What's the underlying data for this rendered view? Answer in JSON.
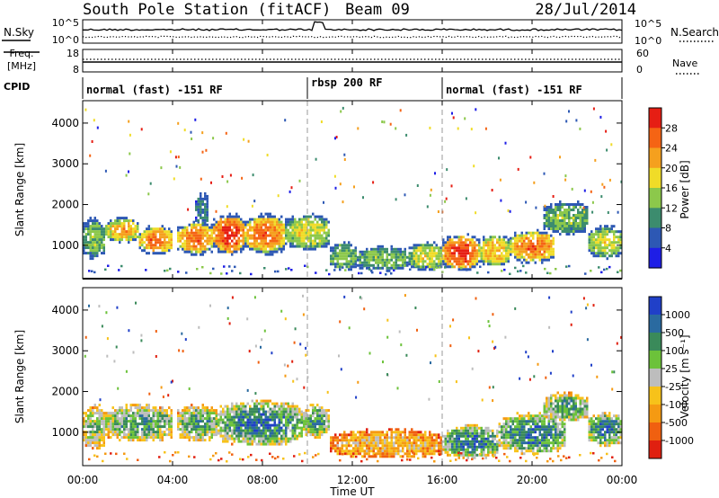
{
  "header": {
    "station": "South Pole Station (fitACF)",
    "beam": "Beam 09",
    "date": "28/Jul/2014"
  },
  "top_panels": {
    "nsky_label": "N.Sky",
    "nsky_ticks": [
      "10^5",
      "10^0"
    ],
    "nsearch_label": "N.Search",
    "nsearch_ticks": [
      "10^5",
      "10^0"
    ],
    "freq_label_1": "Freq.",
    "freq_label_2": "[MHz]",
    "freq_ticks": [
      "18",
      "8"
    ],
    "nave_label": "Nave",
    "nave_ticks": [
      "60",
      "0"
    ],
    "cpid_label": "CPID"
  },
  "cpid_segments": [
    {
      "label": "normal (fast) -151 RF",
      "start_hour": 0,
      "end_hour": 10
    },
    {
      "label": "rbsp 200 RF",
      "start_hour": 10,
      "end_hour": 16
    },
    {
      "label": "normal (fast) -151 RF",
      "start_hour": 16,
      "end_hour": 24
    }
  ],
  "x_axis": {
    "label": "Time UT",
    "ticks": [
      "00:00",
      "04:00",
      "08:00",
      "12:00",
      "16:00",
      "20:00",
      "00:00"
    ],
    "range_hours": [
      0,
      24
    ]
  },
  "y_axis": {
    "label": "Slant Range [km]",
    "ticks": [
      "1000",
      "2000",
      "3000",
      "4000"
    ],
    "range_km": [
      180,
      4550
    ]
  },
  "colorbars": {
    "power": {
      "label": "Power [dB]",
      "ticks": [
        "4",
        "8",
        "12",
        "16",
        "20",
        "24",
        "28"
      ],
      "colors": [
        "#1e1ee6",
        "#2d58b4",
        "#3c8c6e",
        "#8cc84b",
        "#f0dc28",
        "#f5a01e",
        "#f56414",
        "#e61e14"
      ]
    },
    "velocity": {
      "label": "Velocity [m s⁻¹]",
      "ticks": [
        "1000",
        "500",
        "100",
        "25",
        "-25",
        "-100",
        "-500",
        "-1000"
      ],
      "colors": [
        "#2040c8",
        "#2a6aa0",
        "#3a8a5a",
        "#6cc23a",
        "#bdbdbd",
        "#f7c21a",
        "#f59a12",
        "#f06010",
        "#e02010"
      ]
    }
  },
  "chart_data": [
    {
      "type": "heatmap",
      "name": "Power",
      "xlabel": "Time UT",
      "ylabel": "Slant Range [km]",
      "xlim": [
        0,
        24
      ],
      "ylim": [
        180,
        4550
      ],
      "colorbar_label": "Power [dB]",
      "blobs": [
        {
          "t0": 0.0,
          "t1": 1.0,
          "r0": 700,
          "r1": 1700,
          "level": 3
        },
        {
          "t0": 1.0,
          "t1": 2.5,
          "r0": 1100,
          "r1": 1700,
          "level": 5
        },
        {
          "t0": 2.5,
          "t1": 4.0,
          "r0": 800,
          "r1": 1500,
          "level": 6
        },
        {
          "t0": 4.2,
          "t1": 5.8,
          "r0": 800,
          "r1": 1600,
          "level": 6
        },
        {
          "t0": 5.0,
          "t1": 5.6,
          "r0": 1500,
          "r1": 2300,
          "level": 2
        },
        {
          "t0": 5.8,
          "t1": 7.2,
          "r0": 800,
          "r1": 1800,
          "level": 7
        },
        {
          "t0": 7.2,
          "t1": 9.0,
          "r0": 800,
          "r1": 1800,
          "level": 6
        },
        {
          "t0": 9.0,
          "t1": 11.0,
          "r0": 900,
          "r1": 1800,
          "level": 4
        },
        {
          "t0": 11.0,
          "t1": 12.2,
          "r0": 400,
          "r1": 1100,
          "level": 3
        },
        {
          "t0": 12.2,
          "t1": 14.5,
          "r0": 400,
          "r1": 1000,
          "level": 3
        },
        {
          "t0": 14.5,
          "t1": 16.0,
          "r0": 400,
          "r1": 1100,
          "level": 4
        },
        {
          "t0": 16.0,
          "t1": 17.6,
          "r0": 400,
          "r1": 1300,
          "level": 7
        },
        {
          "t0": 17.6,
          "t1": 19.0,
          "r0": 500,
          "r1": 1300,
          "level": 5
        },
        {
          "t0": 19.0,
          "t1": 21.0,
          "r0": 600,
          "r1": 1400,
          "level": 6
        },
        {
          "t0": 20.5,
          "t1": 22.5,
          "r0": 1300,
          "r1": 2100,
          "level": 3
        },
        {
          "t0": 22.5,
          "t1": 24.0,
          "r0": 700,
          "r1": 1500,
          "level": 4
        }
      ]
    },
    {
      "type": "heatmap",
      "name": "Velocity",
      "xlabel": "Time UT",
      "ylabel": "Slant Range [km]",
      "xlim": [
        0,
        24
      ],
      "ylim": [
        180,
        4550
      ],
      "colorbar_label": "Velocity [m s⁻¹]",
      "blobs": [
        {
          "t0": 0.0,
          "t1": 1.0,
          "r0": 600,
          "r1": 1700,
          "level": 5
        },
        {
          "t0": 1.0,
          "t1": 4.0,
          "r0": 800,
          "r1": 1700,
          "level": 6
        },
        {
          "t0": 4.2,
          "t1": 6.0,
          "r0": 800,
          "r1": 1700,
          "level": 6
        },
        {
          "t0": 6.0,
          "t1": 9.8,
          "r0": 700,
          "r1": 1800,
          "level": 7
        },
        {
          "t0": 9.8,
          "t1": 11.0,
          "r0": 900,
          "r1": 1700,
          "level": 6
        },
        {
          "t0": 11.0,
          "t1": 16.0,
          "r0": 400,
          "r1": 1100,
          "level": 3
        },
        {
          "t0": 16.0,
          "t1": 18.5,
          "r0": 400,
          "r1": 1200,
          "level": 7
        },
        {
          "t0": 18.5,
          "t1": 21.5,
          "r0": 500,
          "r1": 1500,
          "level": 7
        },
        {
          "t0": 20.5,
          "t1": 22.5,
          "r0": 1300,
          "r1": 2000,
          "level": 6
        },
        {
          "t0": 22.5,
          "t1": 24.0,
          "r0": 700,
          "r1": 1500,
          "level": 7
        }
      ]
    }
  ]
}
